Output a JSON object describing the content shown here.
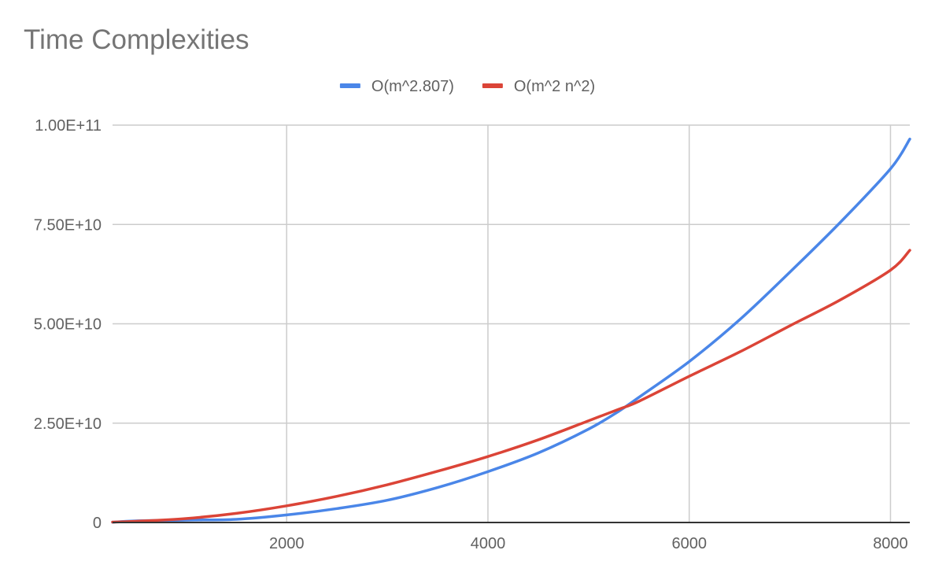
{
  "chart_data": {
    "type": "line",
    "title": "Time Complexities",
    "xlabel": "",
    "ylabel": "",
    "xlim": [
      270,
      8192
    ],
    "ylim": [
      0,
      100000000000
    ],
    "x_ticks": [
      {
        "value": 2000,
        "label": "2000"
      },
      {
        "value": 4000,
        "label": "4000"
      },
      {
        "value": 6000,
        "label": "6000"
      },
      {
        "value": 8000,
        "label": "8000"
      }
    ],
    "y_ticks": [
      {
        "value": 0,
        "label": "0"
      },
      {
        "value": 25000000000,
        "label": "2.50E+10"
      },
      {
        "value": 50000000000,
        "label": "5.00E+10"
      },
      {
        "value": 75000000000,
        "label": "7.50E+10"
      },
      {
        "value": 100000000000,
        "label": "1.00E+11"
      }
    ],
    "grid": true,
    "legend_position": "top",
    "x": [
      270,
      500,
      1000,
      1500,
      2000,
      2500,
      3000,
      3500,
      4000,
      4500,
      5000,
      5300,
      5500,
      6000,
      6500,
      7000,
      7500,
      8000,
      8192
    ],
    "series": [
      {
        "name": "O(m^2.807)",
        "color": "#4a86e8",
        "values": [
          70000000,
          400000000,
          600000000,
          800000000,
          1900000000,
          3500000000,
          5600000000,
          8800000000,
          12800000000,
          17500000000,
          23500000000,
          28000000000,
          31500000000,
          40500000000,
          51000000000,
          63000000000,
          75500000000,
          89000000000,
          96500000000
        ]
      },
      {
        "name": "O(m^2 n^2)",
        "color": "#db4437",
        "values": [
          100000000,
          300000000,
          1000000000,
          2300000000,
          4200000000,
          6600000000,
          9500000000,
          12900000000,
          16600000000,
          20800000000,
          25600000000,
          28500000000,
          30500000000,
          36800000000,
          42900000000,
          49500000000,
          56000000000,
          63500000000,
          68500000000
        ]
      }
    ]
  }
}
